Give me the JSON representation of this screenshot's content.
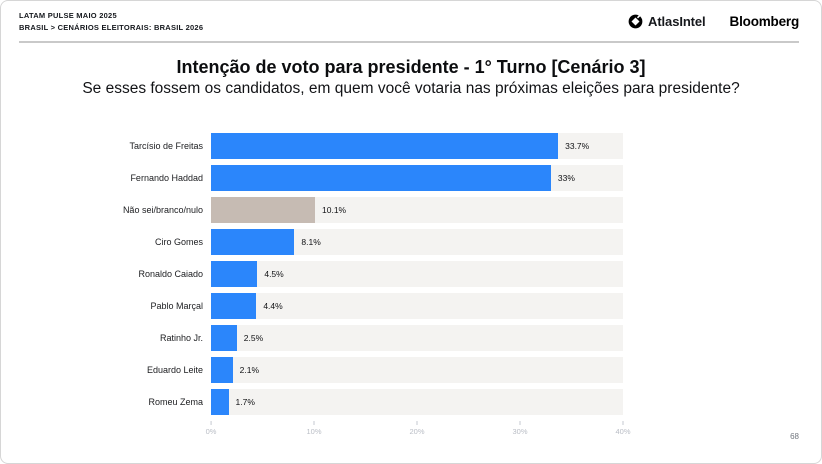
{
  "header": {
    "kicker_line1": "LATAM PULSE MAIO 2025",
    "kicker_line2": "BRASIL > CENÁRIOS ELEITORAIS: BRASIL 2026",
    "brand_atlasintel": "AtlasIntel",
    "brand_bloomberg": "Bloomberg"
  },
  "title": "Intenção de voto para presidente - 1° Turno [Cenário 3]",
  "subtitle": "Se esses fossem os candidatos, em quem você votaria nas próximas eleições para presidente?",
  "page_number": "68",
  "colors": {
    "bar_blue": "#2b86fb",
    "bar_neutral": "#c6bbb3",
    "track": "#f4f3f1"
  },
  "chart_data": {
    "type": "bar",
    "orientation": "horizontal",
    "title": "Intenção de voto para presidente - 1° Turno [Cenário 3]",
    "subtitle": "Se esses fossem os candidatos, em quem você votaria nas próximas eleições para presidente?",
    "categories": [
      "Tarcísio de Freitas",
      "Fernando Haddad",
      "Não sei/branco/nulo",
      "Ciro Gomes",
      "Ronaldo Caiado",
      "Pablo Marçal",
      "Ratinho Jr.",
      "Eduardo Leite",
      "Romeu Zema"
    ],
    "values": [
      33.7,
      33,
      10.1,
      8.1,
      4.5,
      4.4,
      2.5,
      2.1,
      1.7
    ],
    "labels": [
      "33.7%",
      "33%",
      "10.1%",
      "8.1%",
      "4.5%",
      "4.4%",
      "2.5%",
      "2.1%",
      "1.7%"
    ],
    "neutral_index": 2,
    "xlim": [
      0,
      40
    ],
    "x_ticks": [
      "0%",
      "10%",
      "20%",
      "30%",
      "40%"
    ],
    "grid": false,
    "legend": false
  }
}
